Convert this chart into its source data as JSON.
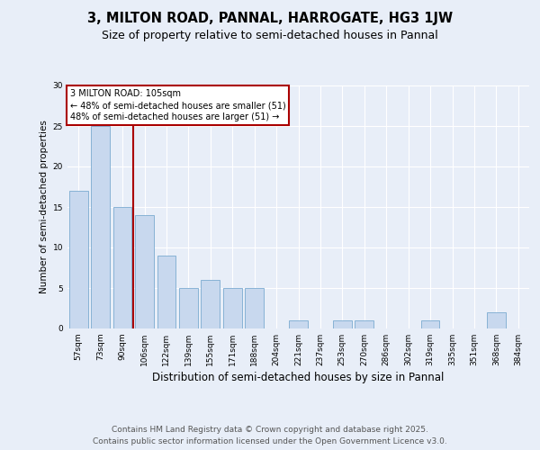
{
  "title1": "3, MILTON ROAD, PANNAL, HARROGATE, HG3 1JW",
  "title2": "Size of property relative to semi-detached houses in Pannal",
  "xlabel": "Distribution of semi-detached houses by size in Pannal",
  "ylabel": "Number of semi-detached properties",
  "categories": [
    "57sqm",
    "73sqm",
    "90sqm",
    "106sqm",
    "122sqm",
    "139sqm",
    "155sqm",
    "171sqm",
    "188sqm",
    "204sqm",
    "221sqm",
    "237sqm",
    "253sqm",
    "270sqm",
    "286sqm",
    "302sqm",
    "319sqm",
    "335sqm",
    "351sqm",
    "368sqm",
    "384sqm"
  ],
  "values": [
    17,
    25,
    15,
    14,
    9,
    5,
    6,
    5,
    5,
    0,
    1,
    0,
    1,
    1,
    0,
    0,
    1,
    0,
    0,
    2,
    0
  ],
  "bar_color": "#c8d8ee",
  "bar_edge_color": "#7aaad0",
  "annotation_title": "3 MILTON ROAD: 105sqm",
  "annotation_line1": "← 48% of semi-detached houses are smaller (51)",
  "annotation_line2": "48% of semi-detached houses are larger (51) →",
  "annotation_box_color": "#ffffff",
  "annotation_box_edge": "#aa0000",
  "vline_color": "#aa0000",
  "ylim": [
    0,
    30
  ],
  "yticks": [
    0,
    5,
    10,
    15,
    20,
    25,
    30
  ],
  "footer1": "Contains HM Land Registry data © Crown copyright and database right 2025.",
  "footer2": "Contains public sector information licensed under the Open Government Licence v3.0.",
  "bg_color": "#e8eef8",
  "plot_bg_color": "#e8eef8",
  "title1_fontsize": 10.5,
  "title2_fontsize": 9,
  "footer_fontsize": 6.5,
  "tick_fontsize": 6.5,
  "ylabel_fontsize": 7.5,
  "xlabel_fontsize": 8.5,
  "ann_fontsize": 7
}
